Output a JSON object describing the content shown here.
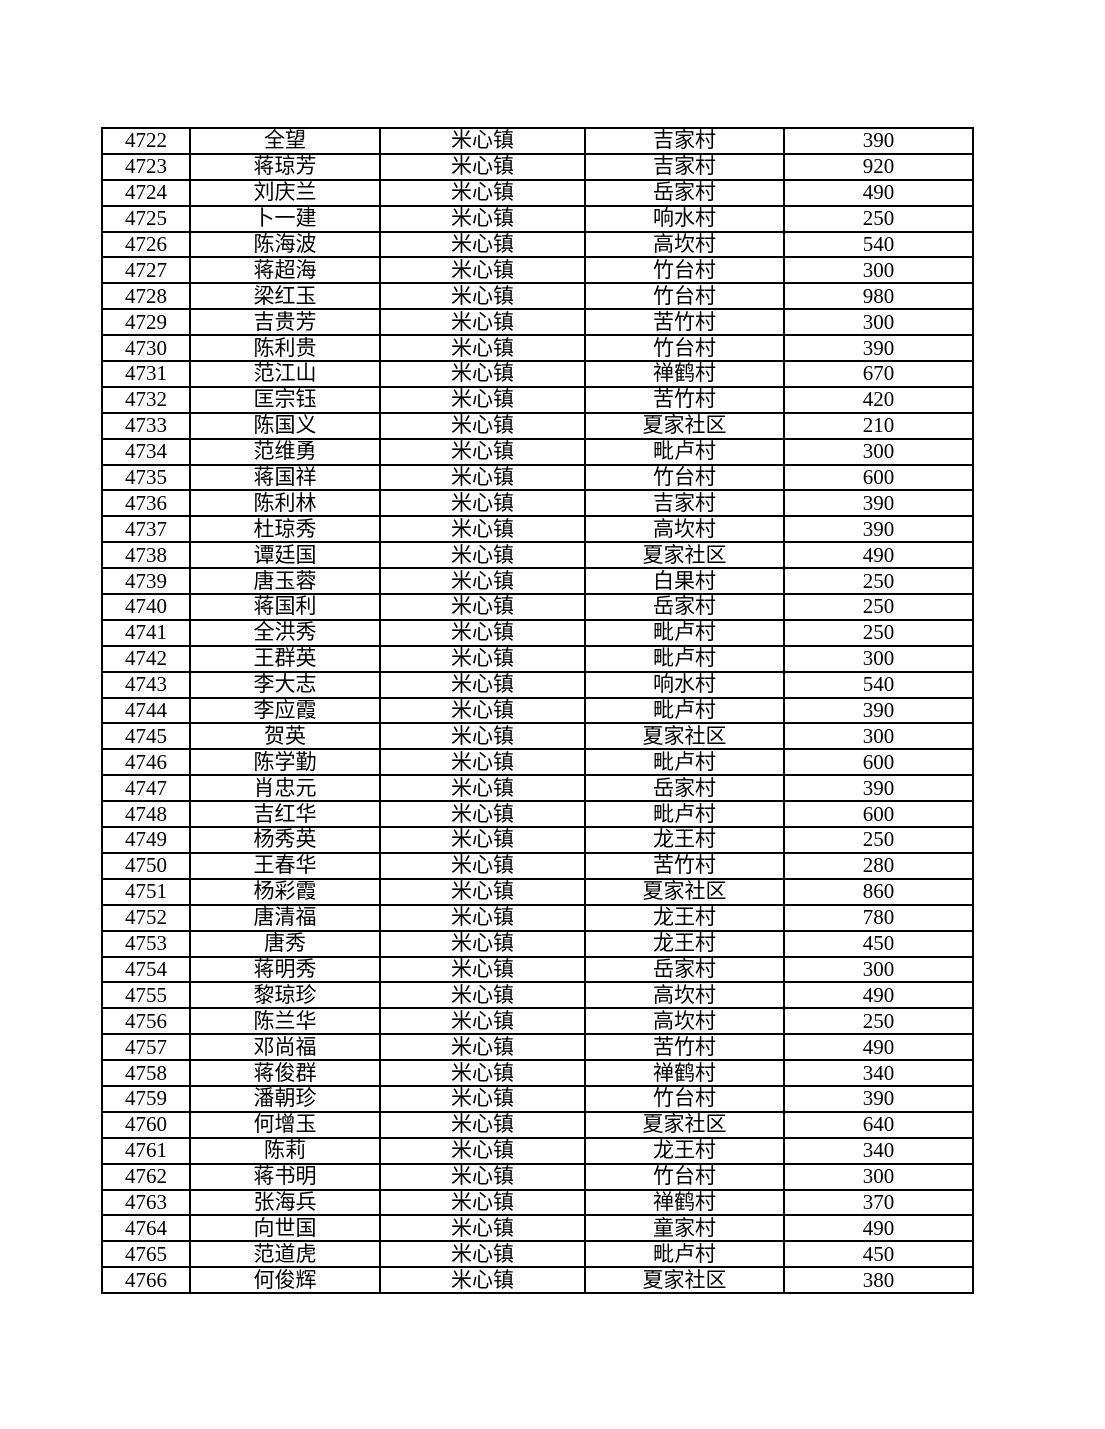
{
  "table": {
    "rows": [
      {
        "id": "4722",
        "name": "全望",
        "town": "米心镇",
        "village": "吉家村",
        "amount": "390"
      },
      {
        "id": "4723",
        "name": "蒋琼芳",
        "town": "米心镇",
        "village": "吉家村",
        "amount": "920"
      },
      {
        "id": "4724",
        "name": "刘庆兰",
        "town": "米心镇",
        "village": "岳家村",
        "amount": "490"
      },
      {
        "id": "4725",
        "name": "卜一建",
        "town": "米心镇",
        "village": "响水村",
        "amount": "250"
      },
      {
        "id": "4726",
        "name": "陈海波",
        "town": "米心镇",
        "village": "高坎村",
        "amount": "540"
      },
      {
        "id": "4727",
        "name": "蒋超海",
        "town": "米心镇",
        "village": "竹台村",
        "amount": "300"
      },
      {
        "id": "4728",
        "name": "梁红玉",
        "town": "米心镇",
        "village": "竹台村",
        "amount": "980"
      },
      {
        "id": "4729",
        "name": "吉贵芳",
        "town": "米心镇",
        "village": "苦竹村",
        "amount": "300"
      },
      {
        "id": "4730",
        "name": "陈利贵",
        "town": "米心镇",
        "village": "竹台村",
        "amount": "390"
      },
      {
        "id": "4731",
        "name": "范江山",
        "town": "米心镇",
        "village": "禅鹤村",
        "amount": "670"
      },
      {
        "id": "4732",
        "name": "匡宗钰",
        "town": "米心镇",
        "village": "苦竹村",
        "amount": "420"
      },
      {
        "id": "4733",
        "name": "陈国义",
        "town": "米心镇",
        "village": "夏家社区",
        "amount": "210"
      },
      {
        "id": "4734",
        "name": "范维勇",
        "town": "米心镇",
        "village": "毗卢村",
        "amount": "300"
      },
      {
        "id": "4735",
        "name": "蒋国祥",
        "town": "米心镇",
        "village": "竹台村",
        "amount": "600"
      },
      {
        "id": "4736",
        "name": "陈利林",
        "town": "米心镇",
        "village": "吉家村",
        "amount": "390"
      },
      {
        "id": "4737",
        "name": "杜琼秀",
        "town": "米心镇",
        "village": "高坎村",
        "amount": "390"
      },
      {
        "id": "4738",
        "name": "谭廷国",
        "town": "米心镇",
        "village": "夏家社区",
        "amount": "490"
      },
      {
        "id": "4739",
        "name": "唐玉蓉",
        "town": "米心镇",
        "village": "白果村",
        "amount": "250"
      },
      {
        "id": "4740",
        "name": "蒋国利",
        "town": "米心镇",
        "village": "岳家村",
        "amount": "250"
      },
      {
        "id": "4741",
        "name": "全洪秀",
        "town": "米心镇",
        "village": "毗卢村",
        "amount": "250"
      },
      {
        "id": "4742",
        "name": "王群英",
        "town": "米心镇",
        "village": "毗卢村",
        "amount": "300"
      },
      {
        "id": "4743",
        "name": "李大志",
        "town": "米心镇",
        "village": "响水村",
        "amount": "540"
      },
      {
        "id": "4744",
        "name": "李应霞",
        "town": "米心镇",
        "village": "毗卢村",
        "amount": "390"
      },
      {
        "id": "4745",
        "name": "贺英",
        "town": "米心镇",
        "village": "夏家社区",
        "amount": "300"
      },
      {
        "id": "4746",
        "name": "陈学勤",
        "town": "米心镇",
        "village": "毗卢村",
        "amount": "600"
      },
      {
        "id": "4747",
        "name": "肖忠元",
        "town": "米心镇",
        "village": "岳家村",
        "amount": "390"
      },
      {
        "id": "4748",
        "name": "吉红华",
        "town": "米心镇",
        "village": "毗卢村",
        "amount": "600"
      },
      {
        "id": "4749",
        "name": "杨秀英",
        "town": "米心镇",
        "village": "龙王村",
        "amount": "250"
      },
      {
        "id": "4750",
        "name": "王春华",
        "town": "米心镇",
        "village": "苦竹村",
        "amount": "280"
      },
      {
        "id": "4751",
        "name": "杨彩霞",
        "town": "米心镇",
        "village": "夏家社区",
        "amount": "860"
      },
      {
        "id": "4752",
        "name": "唐清福",
        "town": "米心镇",
        "village": "龙王村",
        "amount": "780"
      },
      {
        "id": "4753",
        "name": "唐秀",
        "town": "米心镇",
        "village": "龙王村",
        "amount": "450"
      },
      {
        "id": "4754",
        "name": "蒋明秀",
        "town": "米心镇",
        "village": "岳家村",
        "amount": "300"
      },
      {
        "id": "4755",
        "name": "黎琼珍",
        "town": "米心镇",
        "village": "高坎村",
        "amount": "490"
      },
      {
        "id": "4756",
        "name": "陈兰华",
        "town": "米心镇",
        "village": "高坎村",
        "amount": "250"
      },
      {
        "id": "4757",
        "name": "邓尚福",
        "town": "米心镇",
        "village": "苦竹村",
        "amount": "490"
      },
      {
        "id": "4758",
        "name": "蒋俊群",
        "town": "米心镇",
        "village": "禅鹤村",
        "amount": "340"
      },
      {
        "id": "4759",
        "name": "潘朝珍",
        "town": "米心镇",
        "village": "竹台村",
        "amount": "390"
      },
      {
        "id": "4760",
        "name": "何增玉",
        "town": "米心镇",
        "village": "夏家社区",
        "amount": "640"
      },
      {
        "id": "4761",
        "name": "陈莉",
        "town": "米心镇",
        "village": "龙王村",
        "amount": "340"
      },
      {
        "id": "4762",
        "name": "蒋书明",
        "town": "米心镇",
        "village": "竹台村",
        "amount": "300"
      },
      {
        "id": "4763",
        "name": "张海兵",
        "town": "米心镇",
        "village": "禅鹤村",
        "amount": "370"
      },
      {
        "id": "4764",
        "name": "向世国",
        "town": "米心镇",
        "village": "童家村",
        "amount": "490"
      },
      {
        "id": "4765",
        "name": "范道虎",
        "town": "米心镇",
        "village": "毗卢村",
        "amount": "450"
      },
      {
        "id": "4766",
        "name": "何俊辉",
        "town": "米心镇",
        "village": "夏家社区",
        "amount": "380"
      }
    ]
  }
}
